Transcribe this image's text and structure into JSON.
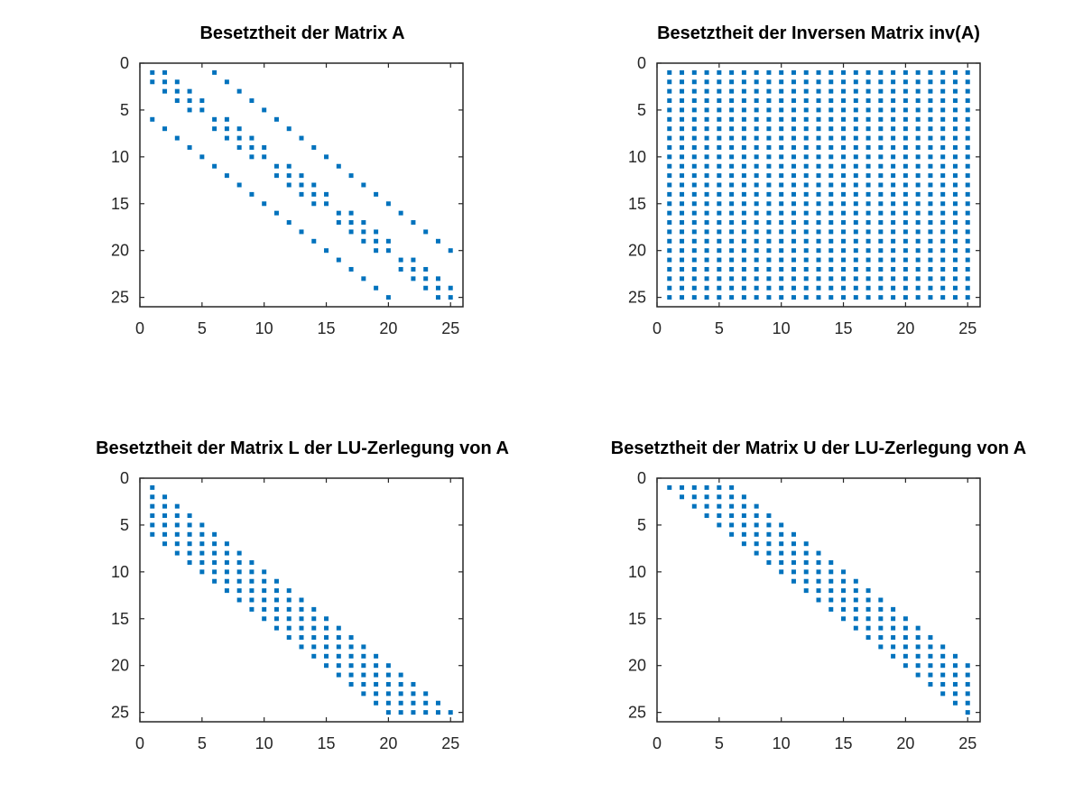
{
  "colors": {
    "marker": "#0072BD",
    "axes": "#262626",
    "background": "#ffffff"
  },
  "chart_data": [
    {
      "type": "scatter",
      "plot": "spy",
      "title": "Besetztheit der Matrix A",
      "n": 25,
      "xlim": [
        0,
        26
      ],
      "ylim": [
        0,
        26
      ],
      "y_reversed": true,
      "xticks": [
        0,
        5,
        10,
        15,
        20,
        25
      ],
      "yticks": [
        0,
        5,
        10,
        15,
        20,
        25
      ],
      "grid": false,
      "pattern": "5x5 block tridiagonal: tridiagonal diagonal blocks (|i-j|<=1 within each block of 5) plus off-diagonal identity blocks (|i-j|=5)",
      "rule": "A"
    },
    {
      "type": "scatter",
      "plot": "spy",
      "title": "Besetztheit der Inversen Matrix inv(A)",
      "n": 25,
      "xlim": [
        0,
        26
      ],
      "ylim": [
        0,
        26
      ],
      "y_reversed": true,
      "xticks": [
        0,
        5,
        10,
        15,
        20,
        25
      ],
      "yticks": [
        0,
        5,
        10,
        15,
        20,
        25
      ],
      "grid": false,
      "pattern": "fully dense (all 625 entries nonzero)",
      "rule": "full"
    },
    {
      "type": "scatter",
      "plot": "spy",
      "title": "Besetztheit der Matrix L der LU-Zerlegung von A",
      "n": 25,
      "xlim": [
        0,
        26
      ],
      "ylim": [
        0,
        26
      ],
      "y_reversed": true,
      "xticks": [
        0,
        5,
        10,
        15,
        20,
        25
      ],
      "yticks": [
        0,
        5,
        10,
        15,
        20,
        25
      ],
      "grid": false,
      "pattern": "lower band: 0 <= i-j <= 5 (fill-in inside envelope)",
      "rule": "L",
      "bandwidth": 5
    },
    {
      "type": "scatter",
      "plot": "spy",
      "title": "Besetztheit der Matrix U der LU-Zerlegung von A",
      "n": 25,
      "xlim": [
        0,
        26
      ],
      "ylim": [
        0,
        26
      ],
      "y_reversed": true,
      "xticks": [
        0,
        5,
        10,
        15,
        20,
        25
      ],
      "yticks": [
        0,
        5,
        10,
        15,
        20,
        25
      ],
      "grid": false,
      "pattern": "upper band: 0 <= j-i <= 5 (fill-in inside envelope)",
      "rule": "U",
      "bandwidth": 5
    }
  ]
}
